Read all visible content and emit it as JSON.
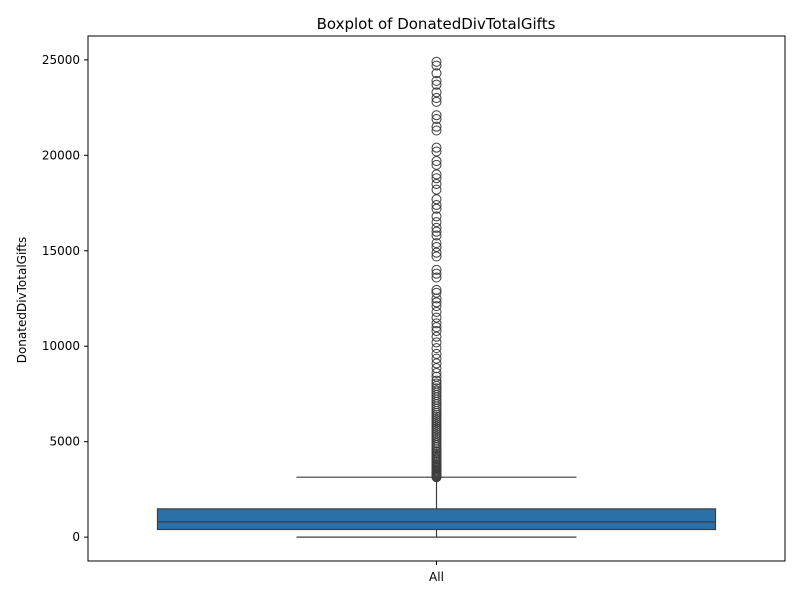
{
  "chart_data": {
    "type": "boxplot",
    "title": "Boxplot of DonatedDivTotalGifts",
    "xlabel": "",
    "ylabel": "DonatedDivTotalGifts",
    "categories": [
      "All"
    ],
    "ylim": [
      -1250,
      26250
    ],
    "yticks": [
      0,
      5000,
      10000,
      15000,
      20000,
      25000
    ],
    "grid": false,
    "legend": "none",
    "box": {
      "min": 0,
      "q1": 400,
      "median": 800,
      "q3": 1480,
      "whisker_high": 3140,
      "color": "#2c70a8",
      "edge_color": "#3d3d3d"
    },
    "outliers": [
      3140,
      3180,
      3220,
      3260,
      3300,
      3350,
      3400,
      3450,
      3500,
      3560,
      3620,
      3680,
      3740,
      3800,
      3870,
      3940,
      4010,
      4080,
      4150,
      4230,
      4310,
      4390,
      4470,
      4550,
      4640,
      4730,
      4820,
      4910,
      5000,
      5100,
      5200,
      5300,
      5400,
      5500,
      5600,
      5700,
      5800,
      5900,
      6000,
      6100,
      6200,
      6300,
      6400,
      6500,
      6600,
      6720,
      6840,
      6960,
      7080,
      7200,
      7320,
      7440,
      7560,
      7680,
      7800,
      7920,
      8050,
      8200,
      8400,
      8600,
      8850,
      9100,
      9350,
      9600,
      9900,
      10200,
      10500,
      10800,
      11000,
      11200,
      11500,
      11800,
      12100,
      12300,
      12500,
      12800,
      12950,
      13600,
      13800,
      14000,
      14700,
      14900,
      15200,
      15400,
      15800,
      16000,
      16200,
      16500,
      16800,
      17200,
      17400,
      17700,
      18200,
      18500,
      18800,
      19000,
      19500,
      19700,
      20200,
      20400,
      21300,
      21500,
      21900,
      22100,
      22800,
      23000,
      23300,
      23700,
      23900,
      24300,
      24700,
      24900
    ]
  }
}
